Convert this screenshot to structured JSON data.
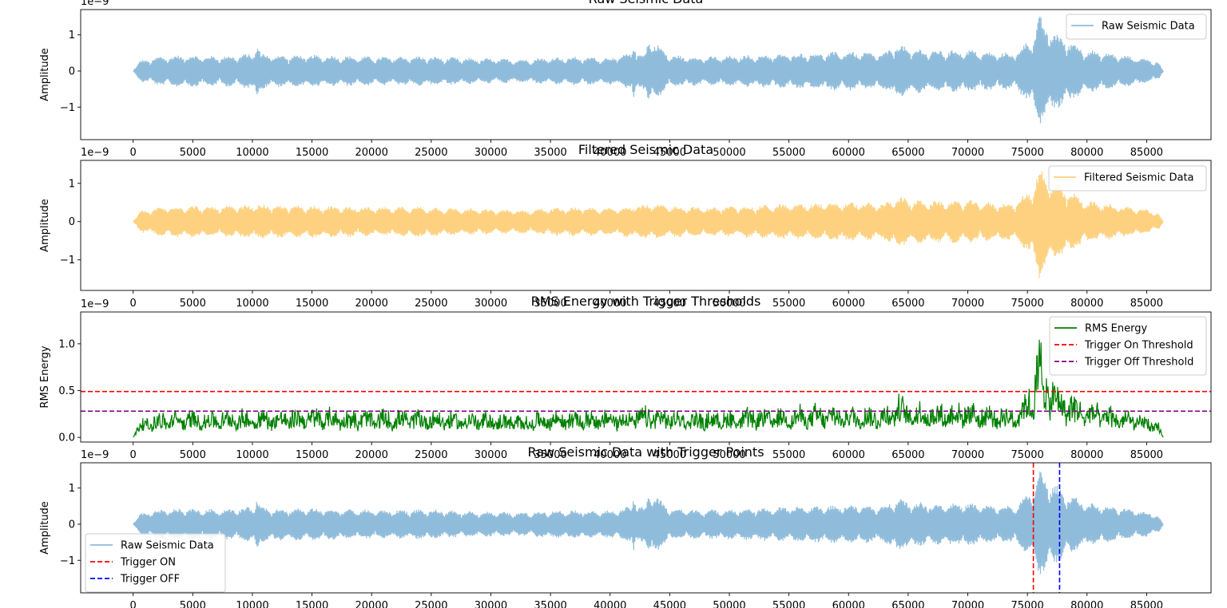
{
  "chart_data": [
    {
      "type": "line",
      "title": "Raw Seismic Data",
      "ylabel": "Amplitude",
      "offset_text": "1e−9",
      "xlim": [
        -4400,
        90400
      ],
      "ylim": [
        -1.9,
        1.7
      ],
      "xticks": [
        0,
        5000,
        10000,
        15000,
        20000,
        25000,
        30000,
        35000,
        40000,
        45000,
        50000,
        55000,
        60000,
        65000,
        70000,
        75000,
        80000,
        85000
      ],
      "yticks": [
        -1,
        0,
        1
      ],
      "legend_position": "top-right",
      "series": [
        {
          "name": "Raw Seismic Data",
          "color": "#8fbcdb",
          "x_range": [
            0,
            86400
          ],
          "envelope_x": [
            0,
            600,
            2500,
            4500,
            6500,
            8500,
            10000,
            10400,
            10700,
            12000,
            15000,
            18000,
            21000,
            24000,
            27000,
            30000,
            33000,
            34500,
            37000,
            40000,
            41800,
            42000,
            42200,
            43000,
            43200,
            45000,
            48000,
            52000,
            56000,
            60000,
            63000,
            64000,
            65000,
            67000,
            70000,
            72000,
            74000,
            75500,
            76000,
            76500,
            78000,
            80000,
            83000,
            85000,
            86000,
            86400
          ],
          "envelope_amp": [
            0.0,
            0.3,
            0.42,
            0.45,
            0.42,
            0.44,
            0.5,
            0.8,
            0.5,
            0.45,
            0.45,
            0.42,
            0.4,
            0.42,
            0.38,
            0.35,
            0.33,
            0.38,
            0.4,
            0.38,
            0.5,
            1.15,
            0.5,
            0.5,
            0.98,
            0.45,
            0.4,
            0.45,
            0.5,
            0.55,
            0.5,
            0.78,
            0.65,
            0.58,
            0.6,
            0.52,
            0.52,
            1.0,
            1.55,
            1.3,
            0.95,
            0.6,
            0.45,
            0.35,
            0.25,
            0.0
          ]
        }
      ]
    },
    {
      "type": "line",
      "title": "Filtered Seismic Data",
      "ylabel": "Amplitude",
      "offset_text": "1e−9",
      "xlim": [
        -4400,
        90400
      ],
      "ylim": [
        -1.8,
        1.6
      ],
      "xticks": [
        0,
        5000,
        10000,
        15000,
        20000,
        25000,
        30000,
        35000,
        40000,
        45000,
        50000,
        55000,
        60000,
        65000,
        70000,
        75000,
        80000,
        85000
      ],
      "yticks": [
        -1,
        0,
        1
      ],
      "legend_position": "top-right",
      "series": [
        {
          "name": "Filtered Seismic Data",
          "color": "#fdd17f",
          "x_range": [
            0,
            86400
          ],
          "envelope_x": [
            0,
            600,
            2500,
            4500,
            6500,
            8500,
            10000,
            10400,
            10700,
            12000,
            15000,
            18000,
            21000,
            24000,
            27000,
            30000,
            33000,
            34500,
            37000,
            40000,
            41800,
            42000,
            42200,
            43000,
            43200,
            45000,
            48000,
            52000,
            56000,
            60000,
            63000,
            64000,
            65000,
            67000,
            70000,
            72000,
            74000,
            75500,
            76000,
            76500,
            78000,
            80000,
            83000,
            85000,
            86000,
            86400
          ],
          "envelope_amp": [
            0.0,
            0.28,
            0.4,
            0.43,
            0.4,
            0.42,
            0.45,
            0.48,
            0.45,
            0.43,
            0.43,
            0.4,
            0.38,
            0.4,
            0.36,
            0.33,
            0.31,
            0.36,
            0.38,
            0.36,
            0.42,
            0.5,
            0.45,
            0.45,
            0.48,
            0.43,
            0.38,
            0.43,
            0.48,
            0.52,
            0.48,
            0.7,
            0.6,
            0.55,
            0.57,
            0.5,
            0.5,
            0.95,
            1.5,
            1.2,
            0.9,
            0.55,
            0.42,
            0.33,
            0.23,
            0.0
          ]
        }
      ]
    },
    {
      "type": "line",
      "title": "RMS Energy with Trigger Thresholds",
      "ylabel": "RMS Energy",
      "offset_text": "1e−9",
      "xlim": [
        -4400,
        90400
      ],
      "ylim": [
        -0.05,
        1.34
      ],
      "xticks": [
        0,
        5000,
        10000,
        15000,
        20000,
        25000,
        30000,
        35000,
        40000,
        45000,
        50000,
        55000,
        60000,
        65000,
        70000,
        75000,
        80000,
        85000
      ],
      "yticks": [
        0.0,
        0.5,
        1.0
      ],
      "ytick_labels": [
        "0.0",
        "0.5",
        "1.0"
      ],
      "legend_position": "top-right",
      "series": [
        {
          "name": "RMS Energy",
          "color": "#008000",
          "x_range": [
            0,
            86400
          ],
          "envelope_x": [
            0,
            600,
            2500,
            4500,
            6500,
            8500,
            10000,
            10400,
            10700,
            12000,
            15000,
            18000,
            21000,
            24000,
            27000,
            30000,
            33000,
            34500,
            37000,
            40000,
            41800,
            42000,
            42200,
            43000,
            43200,
            45000,
            48000,
            52000,
            56000,
            60000,
            63000,
            64000,
            65000,
            67000,
            70000,
            72000,
            74000,
            75500,
            76000,
            76500,
            78000,
            80000,
            83000,
            85000,
            86000,
            86400
          ],
          "envelope_amp": [
            0.0,
            0.24,
            0.3,
            0.33,
            0.32,
            0.33,
            0.34,
            0.36,
            0.35,
            0.34,
            0.36,
            0.34,
            0.33,
            0.34,
            0.32,
            0.3,
            0.28,
            0.32,
            0.34,
            0.33,
            0.36,
            0.38,
            0.36,
            0.36,
            0.38,
            0.34,
            0.32,
            0.35,
            0.38,
            0.4,
            0.38,
            0.53,
            0.45,
            0.42,
            0.44,
            0.38,
            0.38,
            0.75,
            1.28,
            0.9,
            0.6,
            0.45,
            0.34,
            0.26,
            0.18,
            0.0
          ]
        },
        {
          "name": "Trigger On Threshold",
          "color": "#ff0000",
          "style": "dashed",
          "y": 0.49
        },
        {
          "name": "Trigger Off Threshold",
          "color": "#800080",
          "style": "dashed",
          "y": 0.28
        }
      ]
    },
    {
      "type": "line",
      "title": "Raw Seismic Data with Trigger Points",
      "ylabel": "Amplitude",
      "offset_text": "1e−9",
      "xlim": [
        -4400,
        90400
      ],
      "ylim": [
        -1.9,
        1.7
      ],
      "xticks": [
        0,
        5000,
        10000,
        15000,
        20000,
        25000,
        30000,
        35000,
        40000,
        45000,
        50000,
        55000,
        60000,
        65000,
        70000,
        75000,
        80000,
        85000
      ],
      "yticks": [
        -1,
        0,
        1
      ],
      "legend_position": "bottom-left",
      "series": [
        {
          "name": "Raw Seismic Data",
          "color": "#8fbcdb",
          "x_range": [
            0,
            86400
          ],
          "envelope_x": [
            0,
            600,
            2500,
            4500,
            6500,
            8500,
            10000,
            10400,
            10700,
            12000,
            15000,
            18000,
            21000,
            24000,
            27000,
            30000,
            33000,
            34500,
            37000,
            40000,
            41800,
            42000,
            42200,
            43000,
            43200,
            45000,
            48000,
            52000,
            56000,
            60000,
            63000,
            64000,
            65000,
            67000,
            70000,
            72000,
            74000,
            75500,
            76000,
            76500,
            78000,
            80000,
            83000,
            85000,
            86000,
            86400
          ],
          "envelope_amp": [
            0.0,
            0.3,
            0.42,
            0.45,
            0.42,
            0.44,
            0.5,
            0.8,
            0.5,
            0.45,
            0.45,
            0.42,
            0.4,
            0.42,
            0.38,
            0.35,
            0.33,
            0.38,
            0.4,
            0.38,
            0.5,
            1.15,
            0.5,
            0.5,
            0.98,
            0.45,
            0.4,
            0.45,
            0.5,
            0.55,
            0.5,
            0.78,
            0.65,
            0.58,
            0.6,
            0.52,
            0.52,
            1.0,
            1.55,
            1.3,
            0.95,
            0.6,
            0.45,
            0.35,
            0.25,
            0.0
          ]
        },
        {
          "name": "Trigger ON",
          "color": "#ff0000",
          "style": "dashed",
          "x": 75500
        },
        {
          "name": "Trigger OFF",
          "color": "#0000ff",
          "style": "dashed",
          "x": 77700
        }
      ]
    }
  ]
}
